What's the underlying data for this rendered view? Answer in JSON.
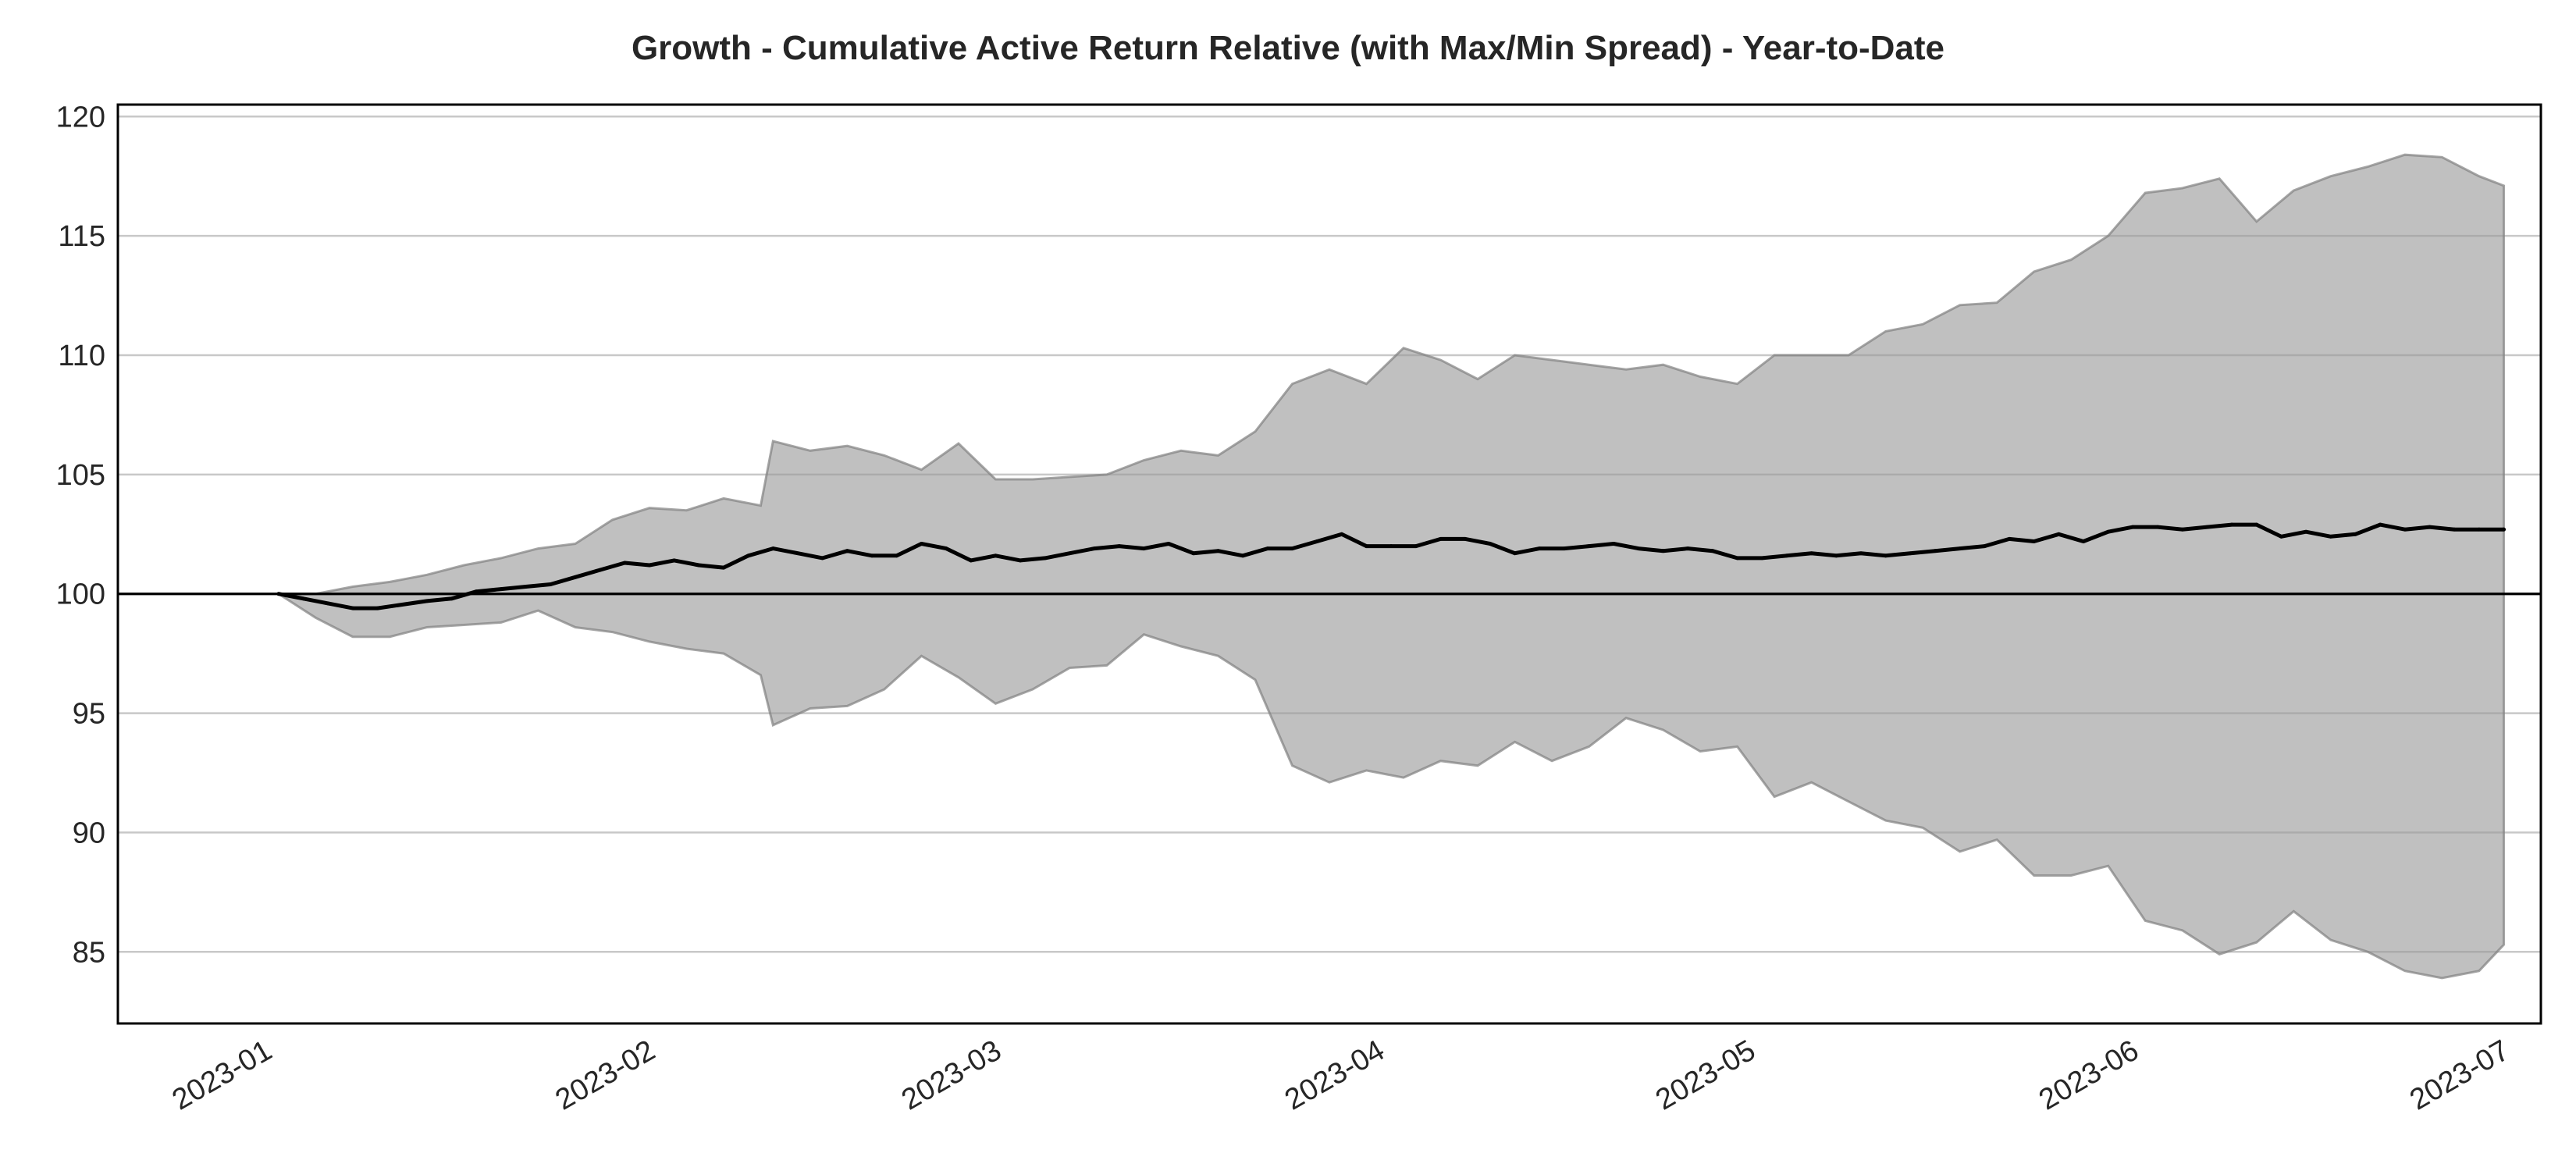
{
  "chart_data": {
    "type": "area",
    "title": "Growth - Cumulative Active Return Relative (with Max/Min Spread) - Year-to-Date",
    "xlabel": "",
    "ylabel": "",
    "ylim": [
      82,
      120.5
    ],
    "xlim": [
      "2022-12-20",
      "2023-07-04"
    ],
    "yticks": [
      85,
      90,
      95,
      100,
      105,
      110,
      115,
      120
    ],
    "ytick_labels": [
      "85",
      "90",
      "95",
      "100",
      "105",
      "110",
      "115",
      "120"
    ],
    "xticks": [
      "2023-01-01",
      "2023-02-01",
      "2023-03-01",
      "2023-04-01",
      "2023-05-01",
      "2023-06-01",
      "2023-07-01"
    ],
    "xtick_labels": [
      "2023-01",
      "2023-02",
      "2023-03",
      "2023-04",
      "2023-05",
      "2023-06",
      "2023-07"
    ],
    "grid": "horizontal",
    "reference_line": 100,
    "colors": {
      "line": "#000000",
      "band": "#999999",
      "band_edge": "#808080",
      "grid": "#c8c8c8",
      "axes": "#000000"
    },
    "series": [
      {
        "values": [
          [
            "2023-01-02",
            100.0
          ],
          [
            "2023-01-04",
            99.8
          ],
          [
            "2023-01-06",
            99.6
          ],
          [
            "2023-01-08",
            99.4
          ],
          [
            "2023-01-10",
            99.4
          ],
          [
            "2023-01-12",
            99.55
          ],
          [
            "2023-01-14",
            99.7
          ],
          [
            "2023-01-16",
            99.8
          ],
          [
            "2023-01-18",
            100.1
          ],
          [
            "2023-01-20",
            100.2
          ],
          [
            "2023-01-22",
            100.3
          ],
          [
            "2023-01-24",
            100.4
          ],
          [
            "2023-01-26",
            100.7
          ],
          [
            "2023-01-28",
            101.0
          ],
          [
            "2023-01-30",
            101.3
          ],
          [
            "2023-02-01",
            101.2
          ],
          [
            "2023-02-03",
            101.4
          ],
          [
            "2023-02-05",
            101.2
          ],
          [
            "2023-02-07",
            101.1
          ],
          [
            "2023-02-09",
            101.6
          ],
          [
            "2023-02-11",
            101.9
          ],
          [
            "2023-02-13",
            101.7
          ],
          [
            "2023-02-15",
            101.5
          ],
          [
            "2023-02-17",
            101.8
          ],
          [
            "2023-02-19",
            101.6
          ],
          [
            "2023-02-21",
            101.6
          ],
          [
            "2023-02-23",
            102.1
          ],
          [
            "2023-02-25",
            101.9
          ],
          [
            "2023-02-27",
            101.4
          ],
          [
            "2023-03-01",
            101.6
          ],
          [
            "2023-03-03",
            101.4
          ],
          [
            "2023-03-05",
            101.5
          ],
          [
            "2023-03-07",
            101.7
          ],
          [
            "2023-03-09",
            101.9
          ],
          [
            "2023-03-11",
            102.0
          ],
          [
            "2023-03-13",
            101.9
          ],
          [
            "2023-03-15",
            102.1
          ],
          [
            "2023-03-17",
            101.7
          ],
          [
            "2023-03-19",
            101.8
          ],
          [
            "2023-03-21",
            101.6
          ],
          [
            "2023-03-23",
            101.9
          ],
          [
            "2023-03-25",
            101.9
          ],
          [
            "2023-03-27",
            102.2
          ],
          [
            "2023-03-29",
            102.5
          ],
          [
            "2023-03-31",
            102.0
          ],
          [
            "2023-04-02",
            102.0
          ],
          [
            "2023-04-04",
            102.0
          ],
          [
            "2023-04-06",
            102.3
          ],
          [
            "2023-04-08",
            102.3
          ],
          [
            "2023-04-10",
            102.1
          ],
          [
            "2023-04-12",
            101.7
          ],
          [
            "2023-04-14",
            101.9
          ],
          [
            "2023-04-16",
            101.9
          ],
          [
            "2023-04-18",
            102.0
          ],
          [
            "2023-04-20",
            102.1
          ],
          [
            "2023-04-22",
            101.9
          ],
          [
            "2023-04-24",
            101.8
          ],
          [
            "2023-04-26",
            101.9
          ],
          [
            "2023-04-28",
            101.8
          ],
          [
            "2023-04-30",
            101.5
          ],
          [
            "2023-05-02",
            101.5
          ],
          [
            "2023-05-04",
            101.6
          ],
          [
            "2023-05-06",
            101.7
          ],
          [
            "2023-05-08",
            101.6
          ],
          [
            "2023-05-10",
            101.7
          ],
          [
            "2023-05-12",
            101.6
          ],
          [
            "2023-05-14",
            101.7
          ],
          [
            "2023-05-16",
            101.8
          ],
          [
            "2023-05-18",
            101.9
          ],
          [
            "2023-05-20",
            102.0
          ],
          [
            "2023-05-22",
            102.3
          ],
          [
            "2023-05-24",
            102.2
          ],
          [
            "2023-05-26",
            102.5
          ],
          [
            "2023-05-28",
            102.2
          ],
          [
            "2023-05-30",
            102.6
          ],
          [
            "2023-06-01",
            102.8
          ],
          [
            "2023-06-03",
            102.8
          ],
          [
            "2023-06-05",
            102.7
          ],
          [
            "2023-06-07",
            102.8
          ],
          [
            "2023-06-09",
            102.9
          ],
          [
            "2023-06-11",
            102.9
          ],
          [
            "2023-06-13",
            102.4
          ],
          [
            "2023-06-15",
            102.6
          ],
          [
            "2023-06-17",
            102.4
          ],
          [
            "2023-06-19",
            102.5
          ],
          [
            "2023-06-21",
            102.9
          ],
          [
            "2023-06-23",
            102.7
          ],
          [
            "2023-06-25",
            102.8
          ],
          [
            "2023-06-27",
            102.7
          ],
          [
            "2023-06-29",
            102.7
          ],
          [
            "2023-07-01",
            102.7
          ]
        ]
      },
      {
        "values": [
          [
            "2023-01-02",
            100.0
          ],
          [
            "2023-01-05",
            100.0
          ],
          [
            "2023-01-08",
            100.3
          ],
          [
            "2023-01-11",
            100.5
          ],
          [
            "2023-01-14",
            100.8
          ],
          [
            "2023-01-17",
            101.2
          ],
          [
            "2023-01-20",
            101.5
          ],
          [
            "2023-01-23",
            101.9
          ],
          [
            "2023-01-26",
            102.1
          ],
          [
            "2023-01-29",
            103.1
          ],
          [
            "2023-02-01",
            103.6
          ],
          [
            "2023-02-04",
            103.5
          ],
          [
            "2023-02-07",
            104.0
          ],
          [
            "2023-02-10",
            103.7
          ],
          [
            "2023-02-11",
            106.4
          ],
          [
            "2023-02-14",
            106.0
          ],
          [
            "2023-02-17",
            106.2
          ],
          [
            "2023-02-20",
            105.8
          ],
          [
            "2023-02-23",
            105.2
          ],
          [
            "2023-02-26",
            106.3
          ],
          [
            "2023-03-01",
            104.8
          ],
          [
            "2023-03-04",
            104.8
          ],
          [
            "2023-03-07",
            104.9
          ],
          [
            "2023-03-10",
            105.0
          ],
          [
            "2023-03-13",
            105.6
          ],
          [
            "2023-03-16",
            106.0
          ],
          [
            "2023-03-19",
            105.8
          ],
          [
            "2023-03-22",
            106.8
          ],
          [
            "2023-03-25",
            108.8
          ],
          [
            "2023-03-28",
            109.4
          ],
          [
            "2023-03-31",
            108.8
          ],
          [
            "2023-04-03",
            110.3
          ],
          [
            "2023-04-06",
            109.8
          ],
          [
            "2023-04-09",
            109.0
          ],
          [
            "2023-04-12",
            110.0
          ],
          [
            "2023-04-15",
            109.8
          ],
          [
            "2023-04-18",
            109.6
          ],
          [
            "2023-04-21",
            109.4
          ],
          [
            "2023-04-24",
            109.6
          ],
          [
            "2023-04-27",
            109.1
          ],
          [
            "2023-04-30",
            108.8
          ],
          [
            "2023-05-03",
            110.0
          ],
          [
            "2023-05-06",
            110.0
          ],
          [
            "2023-05-09",
            110.0
          ],
          [
            "2023-05-12",
            111.0
          ],
          [
            "2023-05-15",
            111.3
          ],
          [
            "2023-05-18",
            112.1
          ],
          [
            "2023-05-21",
            112.2
          ],
          [
            "2023-05-24",
            113.5
          ],
          [
            "2023-05-27",
            114.0
          ],
          [
            "2023-05-30",
            115.0
          ],
          [
            "2023-06-02",
            116.8
          ],
          [
            "2023-06-05",
            117.0
          ],
          [
            "2023-06-08",
            117.4
          ],
          [
            "2023-06-11",
            115.6
          ],
          [
            "2023-06-14",
            116.9
          ],
          [
            "2023-06-17",
            117.5
          ],
          [
            "2023-06-20",
            117.9
          ],
          [
            "2023-06-23",
            118.4
          ],
          [
            "2023-06-26",
            118.3
          ],
          [
            "2023-06-29",
            117.5
          ],
          [
            "2023-07-01",
            117.1
          ]
        ]
      },
      {
        "values": [
          [
            "2023-01-02",
            100.0
          ],
          [
            "2023-01-05",
            99.0
          ],
          [
            "2023-01-08",
            98.2
          ],
          [
            "2023-01-11",
            98.2
          ],
          [
            "2023-01-14",
            98.6
          ],
          [
            "2023-01-17",
            98.7
          ],
          [
            "2023-01-20",
            98.8
          ],
          [
            "2023-01-23",
            99.3
          ],
          [
            "2023-01-26",
            98.6
          ],
          [
            "2023-01-29",
            98.4
          ],
          [
            "2023-02-01",
            98.0
          ],
          [
            "2023-02-04",
            97.7
          ],
          [
            "2023-02-07",
            97.5
          ],
          [
            "2023-02-10",
            96.6
          ],
          [
            "2023-02-11",
            94.5
          ],
          [
            "2023-02-14",
            95.2
          ],
          [
            "2023-02-17",
            95.3
          ],
          [
            "2023-02-20",
            96.0
          ],
          [
            "2023-02-23",
            97.4
          ],
          [
            "2023-02-26",
            96.5
          ],
          [
            "2023-03-01",
            95.4
          ],
          [
            "2023-03-04",
            96.0
          ],
          [
            "2023-03-07",
            96.9
          ],
          [
            "2023-03-10",
            97.0
          ],
          [
            "2023-03-13",
            98.3
          ],
          [
            "2023-03-16",
            97.8
          ],
          [
            "2023-03-19",
            97.4
          ],
          [
            "2023-03-22",
            96.4
          ],
          [
            "2023-03-25",
            92.8
          ],
          [
            "2023-03-28",
            92.1
          ],
          [
            "2023-03-31",
            92.6
          ],
          [
            "2023-04-03",
            92.3
          ],
          [
            "2023-04-06",
            93.0
          ],
          [
            "2023-04-09",
            92.8
          ],
          [
            "2023-04-12",
            93.8
          ],
          [
            "2023-04-15",
            93.0
          ],
          [
            "2023-04-18",
            93.6
          ],
          [
            "2023-04-21",
            94.8
          ],
          [
            "2023-04-24",
            94.3
          ],
          [
            "2023-04-27",
            93.4
          ],
          [
            "2023-04-30",
            93.6
          ],
          [
            "2023-05-03",
            91.5
          ],
          [
            "2023-05-06",
            92.1
          ],
          [
            "2023-05-09",
            91.3
          ],
          [
            "2023-05-12",
            90.5
          ],
          [
            "2023-05-15",
            90.2
          ],
          [
            "2023-05-18",
            89.2
          ],
          [
            "2023-05-21",
            89.7
          ],
          [
            "2023-05-24",
            88.2
          ],
          [
            "2023-05-27",
            88.2
          ],
          [
            "2023-05-30",
            88.6
          ],
          [
            "2023-06-02",
            86.3
          ],
          [
            "2023-06-05",
            85.9
          ],
          [
            "2023-06-08",
            84.9
          ],
          [
            "2023-06-11",
            85.4
          ],
          [
            "2023-06-14",
            86.7
          ],
          [
            "2023-06-17",
            85.5
          ],
          [
            "2023-06-20",
            85.0
          ],
          [
            "2023-06-23",
            84.2
          ],
          [
            "2023-06-26",
            83.9
          ],
          [
            "2023-06-29",
            84.2
          ],
          [
            "2023-07-01",
            85.3
          ]
        ]
      }
    ]
  }
}
